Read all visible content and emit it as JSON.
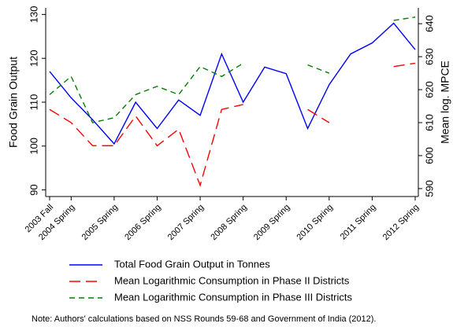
{
  "chart_data": {
    "type": "line",
    "categories": [
      "2003 Fall",
      "2004 Spring",
      null,
      "2005 Spring",
      null,
      "2006 Spring",
      null,
      "2007 Spring",
      null,
      "2008 Spring",
      null,
      "2009 Spring",
      null,
      "2010 Spring",
      null,
      "2011 Spring",
      null,
      "2012 Spring"
    ],
    "y_label": "Food Grain Output",
    "y2_label": "Mean log. MPCE",
    "ylim": [
      88.5,
      131.5
    ],
    "yticks": [
      90,
      100,
      110,
      120,
      130
    ],
    "y2lim": [
      587.6,
      644.8
    ],
    "y2ticks": [
      590,
      600,
      610,
      620,
      630,
      640
    ],
    "series": [
      {
        "name": "Total Food Grain Output in Tonnes",
        "color": "#0000ff",
        "dash": "none",
        "values": [
          117,
          111,
          106,
          100.5,
          110,
          104,
          110.5,
          107,
          121,
          110,
          118,
          116.5,
          104,
          114,
          121,
          123.5,
          128,
          122
        ]
      },
      {
        "name": "Mean Logarithmic Consumption in Phase II Districts",
        "color": "#ff0000",
        "dash": "14 7",
        "axis": "y2",
        "values": [
          614,
          610,
          603,
          603,
          612,
          603,
          608,
          591,
          614,
          615.5,
          null,
          null,
          614,
          610,
          null,
          null,
          627,
          628
        ]
      },
      {
        "name": "Mean Logarithmic Consumption in Phase III Districts",
        "color": "#008000",
        "dash": "7 5",
        "axis": "y2",
        "values": [
          618.5,
          624,
          610,
          611.5,
          618.5,
          621,
          618.5,
          627,
          624,
          628,
          null,
          null,
          627.5,
          625,
          null,
          null,
          641,
          642
        ]
      }
    ],
    "note": "Note: Authors' calculations based on NSS Rounds 59-68 and Government of India (2012)."
  }
}
